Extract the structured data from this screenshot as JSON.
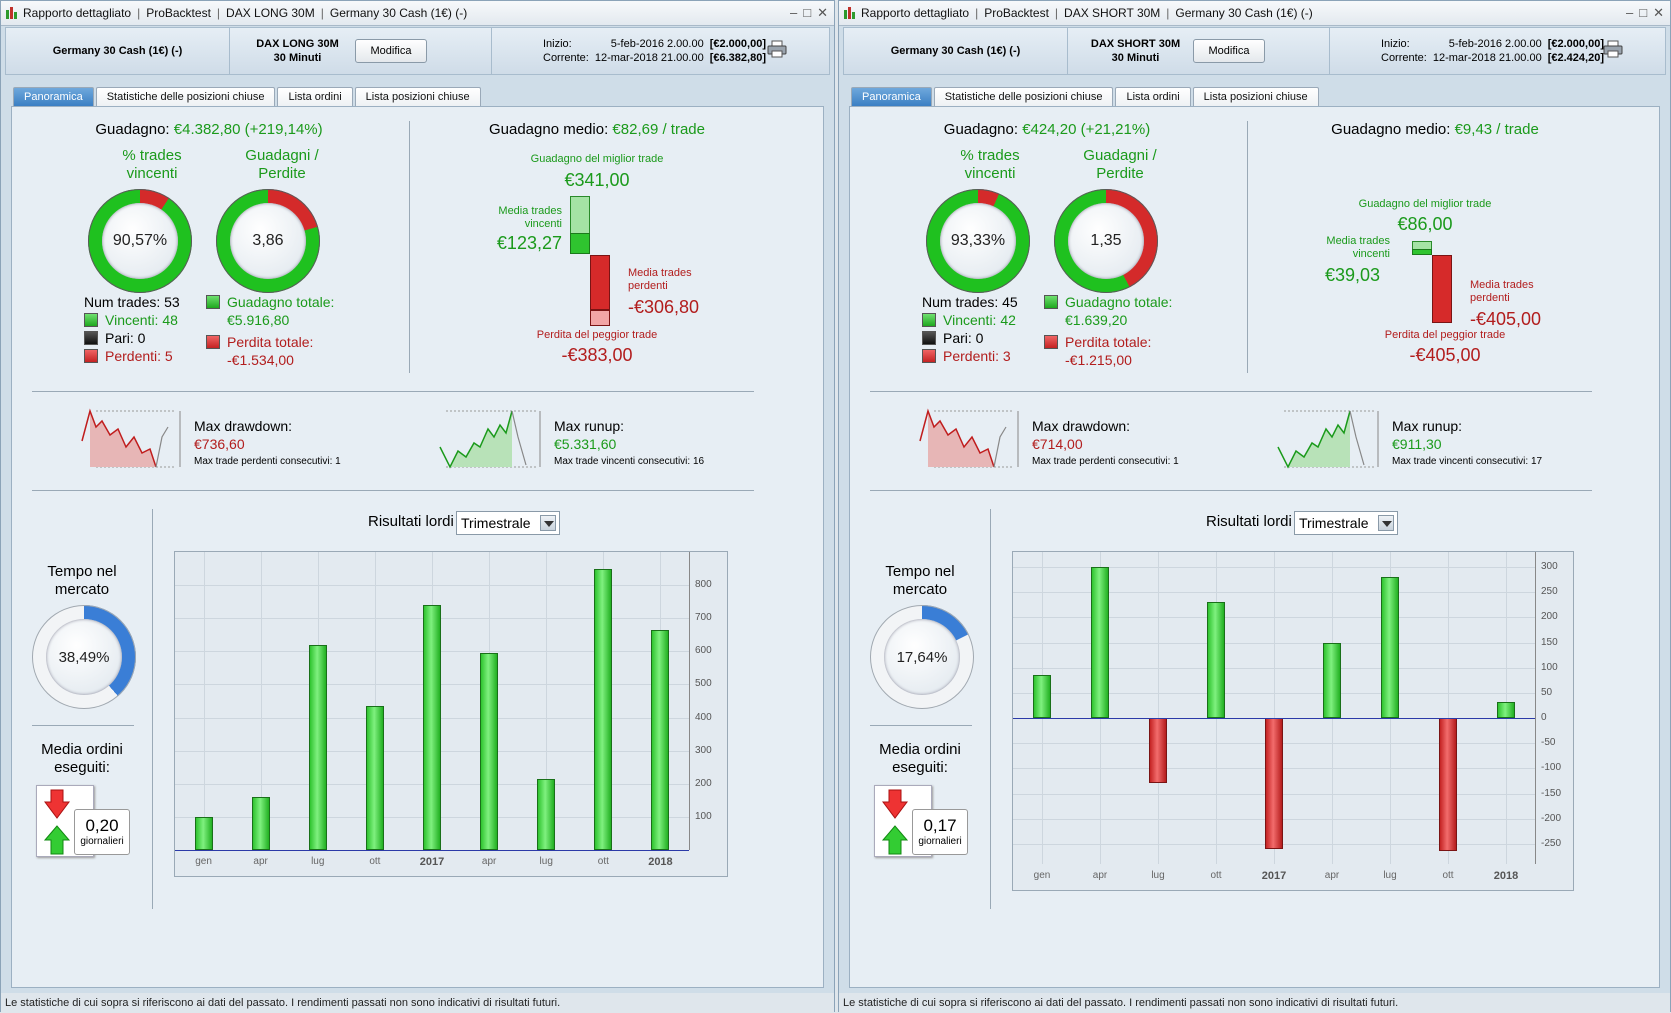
{
  "footer_text": "Le statistiche di cui sopra si riferiscono ai dati del passato. I rendimenti passati non sono indicativi di risultati futuri.",
  "colors": {
    "profit": "#1b9a1b",
    "loss": "#b21d1d",
    "active_tab": "#3b7fc3",
    "bar_positive": "#2fc42f",
    "bar_negative": "#c42323"
  },
  "icons": [
    "probacktest-app-icon",
    "minimize-icon",
    "maximize-icon",
    "close-icon",
    "printer-icon",
    "arrow-down-icon",
    "arrow-up-icon",
    "dropdown-arrow-icon"
  ],
  "left": {
    "titlebar": {
      "t1": "Rapporto dettagliato",
      "t2": "ProBacktest",
      "t3": "DAX LONG 30M",
      "t4": "Germany 30 Cash (1€) (-)"
    },
    "header": {
      "instrument": "Germany 30 Cash (1€) (-)",
      "strategy_line1": "DAX LONG 30M",
      "strategy_line2": "30 Minuti",
      "modify": "Modifica",
      "start_label": "Inizio:",
      "start_date": "5-feb-2016 2.00.00",
      "start_amount": "[€2.000,00]",
      "current_label": "Corrente:",
      "current_date": "12-mar-2018 21.00.00",
      "current_amount": "[€6.382,80]"
    },
    "tabs": [
      "Panoramica",
      "Statistiche delle posizioni chiuse",
      "Lista ordini",
      "Lista posizioni chiuse"
    ],
    "gain_label": "Guadagno:",
    "gain_value": "€4.382,80 (+219,14%)",
    "pct_title1": "% trades",
    "pct_title2": "vincenti",
    "pct_value": "90,57%",
    "pct_fraction": 0.9057,
    "ratio_title1": "Guadagni /",
    "ratio_title2": "Perdite",
    "ratio_value": "3,86",
    "ratio_fraction": 0.794,
    "num_trades": "Num trades: 53",
    "winners": "Vincenti: 48",
    "even": "Pari: 0",
    "losers": "Perdenti: 5",
    "total_gain_label": "Guadagno totale:",
    "total_gain": "€5.916,80",
    "total_loss_label": "Perdita totale:",
    "total_loss": "-€1.534,00",
    "avg_gain_label": "Guadagno medio:",
    "avg_gain_value": "€82,69 / trade",
    "best_label": "Guadagno del miglior trade",
    "best_value": "€341,00",
    "avg_win_label1": "Media trades",
    "avg_win_label2": "vincenti",
    "avg_win_value": "€123,27",
    "avg_loss_label1": "Media trades",
    "avg_loss_label2": "perdenti",
    "avg_loss_value": "-€306,80",
    "worst_label": "Perdita del peggior trade",
    "worst_value": "-€383,00",
    "dd_label": "Max drawdown:",
    "dd_value": "€736,60",
    "dd_consec": "Max trade perdenti consecutivi:  1",
    "ru_label": "Max runup:",
    "ru_value": "€5.331,60",
    "ru_consec": "Max trade vincenti consecutivi:  16",
    "time_title1": "Tempo nel",
    "time_title2": "mercato",
    "time_value": "38,49%",
    "time_fraction": 0.3849,
    "orders_title1": "Media ordini",
    "orders_title2": "eseguiti:",
    "orders_value": "0,20",
    "orders_unit": "giornalieri",
    "results_label": "Risultati lordi",
    "period_select": "Trimestrale",
    "chart_data": {
      "type": "bar",
      "categories": [
        "gen",
        "apr",
        "lug",
        "ott",
        "2017",
        "apr",
        "lug",
        "ott",
        "2018"
      ],
      "x_tick_labels": [
        "gen",
        "apr",
        "lug",
        "ott",
        "2017",
        "apr",
        "lug",
        "ott",
        "2018"
      ],
      "values": [
        100,
        160,
        620,
        435,
        740,
        595,
        215,
        850,
        665
      ],
      "y_ticks": [
        100,
        200,
        300,
        400,
        500,
        600,
        700,
        800
      ],
      "ylim": [
        0,
        900
      ],
      "grid": true
    }
  },
  "right": {
    "titlebar": {
      "t1": "Rapporto dettagliato",
      "t2": "ProBacktest",
      "t3": "DAX SHORT 30M",
      "t4": "Germany 30 Cash (1€) (-)"
    },
    "header": {
      "instrument": "Germany 30 Cash (1€) (-)",
      "strategy_line1": "DAX SHORT 30M",
      "strategy_line2": "30 Minuti",
      "modify": "Modifica",
      "start_label": "Inizio:",
      "start_date": "5-feb-2016 2.00.00",
      "start_amount": "[€2.000,00]",
      "current_label": "Corrente:",
      "current_date": "12-mar-2018 21.00.00",
      "current_amount": "[€2.424,20]"
    },
    "tabs": [
      "Panoramica",
      "Statistiche delle posizioni chiuse",
      "Lista ordini",
      "Lista posizioni chiuse"
    ],
    "gain_label": "Guadagno:",
    "gain_value": "€424,20 (+21,21%)",
    "pct_title1": "% trades",
    "pct_title2": "vincenti",
    "pct_value": "93,33%",
    "pct_fraction": 0.9333,
    "ratio_title1": "Guadagni /",
    "ratio_title2": "Perdite",
    "ratio_value": "1,35",
    "ratio_fraction": 0.574,
    "num_trades": "Num trades: 45",
    "winners": "Vincenti: 42",
    "even": "Pari: 0",
    "losers": "Perdenti: 3",
    "total_gain_label": "Guadagno totale:",
    "total_gain": "€1.639,20",
    "total_loss_label": "Perdita totale:",
    "total_loss": "-€1.215,00",
    "avg_gain_label": "Guadagno medio:",
    "avg_gain_value": "€9,43 / trade",
    "best_label": "Guadagno del miglior trade",
    "best_value": "€86,00",
    "avg_win_label1": "Media trades",
    "avg_win_label2": "vincenti",
    "avg_win_value": "€39,03",
    "avg_loss_label1": "Media trades",
    "avg_loss_label2": "perdenti",
    "avg_loss_value": "-€405,00",
    "worst_label": "Perdita del peggior trade",
    "worst_value": "-€405,00",
    "dd_label": "Max drawdown:",
    "dd_value": "€714,00",
    "dd_consec": "Max trade perdenti consecutivi:  1",
    "ru_label": "Max runup:",
    "ru_value": "€911,30",
    "ru_consec": "Max trade vincenti consecutivi:  17",
    "time_title1": "Tempo nel",
    "time_title2": "mercato",
    "time_value": "17,64%",
    "time_fraction": 0.1764,
    "orders_title1": "Media ordini",
    "orders_title2": "eseguiti:",
    "orders_value": "0,17",
    "orders_unit": "giornalieri",
    "results_label": "Risultati lordi",
    "period_select": "Trimestrale",
    "chart_data": {
      "type": "bar",
      "categories": [
        "gen",
        "apr",
        "lug",
        "ott",
        "2017",
        "apr",
        "lug",
        "ott",
        "2018"
      ],
      "x_tick_labels": [
        "gen",
        "apr",
        "lug",
        "ott",
        "2017",
        "apr",
        "lug",
        "ott",
        "2018"
      ],
      "values": [
        85,
        300,
        -130,
        230,
        -260,
        150,
        280,
        -265,
        32
      ],
      "y_ticks": [
        300,
        250,
        200,
        150,
        100,
        50,
        0,
        -50,
        -100,
        -150,
        -200,
        -250
      ],
      "ylim": [
        -290,
        330
      ],
      "grid": true
    }
  }
}
